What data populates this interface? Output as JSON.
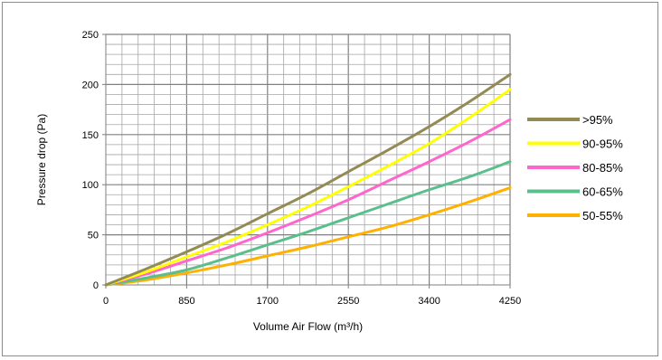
{
  "chart_data": {
    "type": "line",
    "title": "",
    "xlabel": "Volume Air Flow (m³/h)",
    "ylabel": "Pressure drop (Pa)",
    "xlim": [
      0,
      4250
    ],
    "ylim": [
      0,
      250
    ],
    "x_ticks": [
      "0",
      "850",
      "1700",
      "2550",
      "3400",
      "4250"
    ],
    "y_ticks": [
      "0",
      "50",
      "100",
      "150",
      "200",
      "250"
    ],
    "grid": true,
    "legend_position": "right",
    "x": [
      0,
      425,
      850,
      1275,
      1700,
      2125,
      2550,
      2975,
      3400,
      3825,
      4250
    ],
    "series": [
      {
        "name": ">95%",
        "color": "#948a54",
        "values": [
          0,
          16,
          33,
          51,
          71,
          91,
          113,
          135,
          158,
          183,
          210
        ]
      },
      {
        "name": "90-95%",
        "color": "#ffff00",
        "values": [
          0,
          13,
          28,
          43,
          60,
          78,
          98,
          119,
          141,
          167,
          195
        ]
      },
      {
        "name": "80-85%",
        "color": "#ff66cc",
        "values": [
          0,
          11,
          24,
          37,
          52,
          68,
          85,
          104,
          123,
          143,
          165
        ]
      },
      {
        "name": "60-65%",
        "color": "#5bbf8c",
        "values": [
          0,
          7,
          15,
          27,
          40,
          53,
          67,
          81,
          95,
          108,
          123
        ]
      },
      {
        "name": "50-55%",
        "color": "#ffb000",
        "values": [
          0,
          5,
          12,
          20,
          29,
          38,
          48,
          58,
          70,
          83,
          97
        ]
      }
    ]
  }
}
